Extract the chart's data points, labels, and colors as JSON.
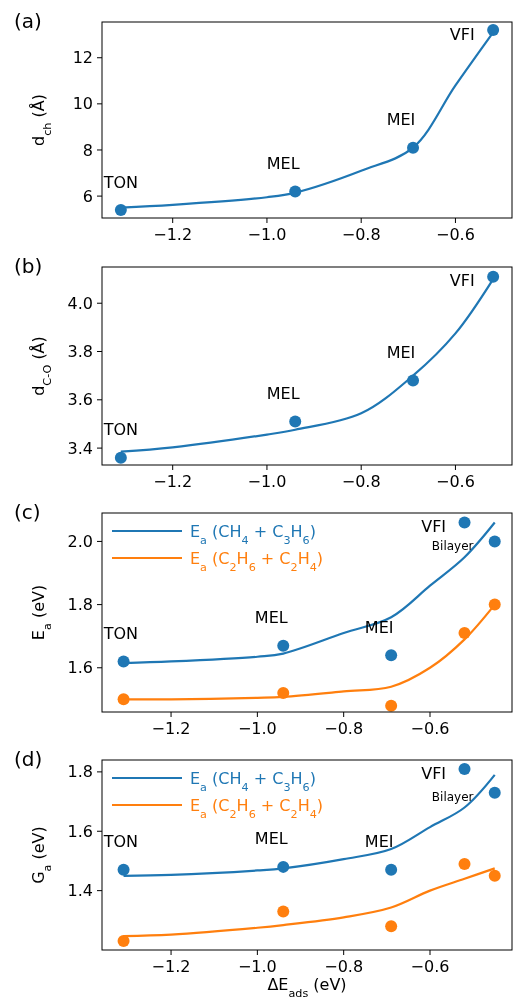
{
  "chart_data": [
    {
      "type": "scatter",
      "title": "(a)",
      "ylabel": "d$_{ch}$ (Å)",
      "xlim": [
        -1.35,
        -0.48
      ],
      "xticks": [
        {
          "value": -1.2,
          "label": "−1.2"
        },
        {
          "value": -1.0,
          "label": "−1.0"
        },
        {
          "value": -0.8,
          "label": "−0.8"
        },
        {
          "value": -0.6,
          "label": "−0.6"
        }
      ],
      "ylim": [
        5.05,
        13.55
      ],
      "yticks": [
        6,
        8,
        10,
        12
      ],
      "series": [
        {
          "type": "scatter",
          "color": "#1f77b4",
          "marker": "circle",
          "x": [
            -1.31,
            -0.94,
            -0.69,
            -0.52
          ],
          "values": [
            5.4,
            6.2,
            8.1,
            13.2
          ]
        },
        {
          "type": "line",
          "color": "#1f77b4",
          "marker": "none",
          "x": [
            -1.31,
            -1.2,
            -1.0,
            -0.94,
            -0.8,
            -0.69,
            -0.6,
            -0.52
          ],
          "values": [
            5.5,
            5.62,
            5.95,
            6.15,
            7.1,
            8.1,
            10.8,
            13.1
          ]
        }
      ],
      "annotations": [
        {
          "text": "TON",
          "x": -1.31,
          "y": 5.4
        },
        {
          "text": "MEL",
          "x": -0.94,
          "y": 6.2
        },
        {
          "text": "MEI",
          "x": -0.69,
          "y": 8.1
        },
        {
          "text": "VFI",
          "x": -0.52,
          "y": 13.2
        }
      ]
    },
    {
      "type": "scatter",
      "title": "(b)",
      "ylabel": "d$_{C-O}$ (Å)",
      "xlim": [
        -1.35,
        -0.48
      ],
      "xticks": [
        {
          "value": -1.2,
          "label": "−1.2"
        },
        {
          "value": -1.0,
          "label": "−1.0"
        },
        {
          "value": -0.8,
          "label": "−0.8"
        },
        {
          "value": -0.6,
          "label": "−0.6"
        }
      ],
      "ylim": [
        3.33,
        4.15
      ],
      "yticks": [
        {
          "value": 3.4,
          "label": "3.4"
        },
        {
          "value": 3.6,
          "label": "3.6"
        },
        {
          "value": 3.8,
          "label": "3.8"
        },
        {
          "value": 4.0,
          "label": "4.0"
        }
      ],
      "series": [
        {
          "type": "scatter",
          "color": "#1f77b4",
          "marker": "circle",
          "x": [
            -1.31,
            -0.94,
            -0.69,
            -0.52
          ],
          "values": [
            3.36,
            3.51,
            3.68,
            4.11
          ]
        },
        {
          "type": "line",
          "color": "#1f77b4",
          "marker": "none",
          "x": [
            -1.31,
            -1.2,
            -1.0,
            -0.94,
            -0.8,
            -0.69,
            -0.6,
            -0.52
          ],
          "values": [
            3.385,
            3.403,
            3.456,
            3.476,
            3.544,
            3.7,
            3.875,
            4.1
          ]
        }
      ],
      "annotations": [
        {
          "text": "TON",
          "x": -1.31,
          "y": 3.36
        },
        {
          "text": "MEL",
          "x": -0.94,
          "y": 3.51
        },
        {
          "text": "MEI",
          "x": -0.69,
          "y": 3.68
        },
        {
          "text": "VFI",
          "x": -0.52,
          "y": 4.11
        }
      ]
    },
    {
      "type": "scatter",
      "title": "(c)",
      "ylabel": "E$_{a}$ (eV)",
      "xlim": [
        -1.36,
        -0.41
      ],
      "xticks": [
        {
          "value": -1.2,
          "label": "−1.2"
        },
        {
          "value": -1.0,
          "label": "−1.0"
        },
        {
          "value": -0.8,
          "label": "−0.8"
        },
        {
          "value": -0.6,
          "label": "−0.6"
        }
      ],
      "ylim": [
        1.46,
        2.09
      ],
      "yticks": [
        1.6,
        1.8,
        {
          "value": 2.0,
          "label": "2.0"
        }
      ],
      "series": [
        {
          "type": "scatter",
          "color": "#1f77b4",
          "marker": "circle",
          "x": [
            -1.31,
            -0.94,
            -0.69,
            -0.52,
            -0.45
          ],
          "values": [
            1.62,
            1.67,
            1.64,
            2.06,
            2.0
          ]
        },
        {
          "type": "scatter",
          "color": "#ff7f0e",
          "marker": "circle",
          "x": [
            -1.31,
            -0.94,
            -0.69,
            -0.52,
            -0.45
          ],
          "values": [
            1.5,
            1.52,
            1.48,
            1.71,
            1.8
          ]
        },
        {
          "type": "line",
          "name": "E$_{a}$ (CH$_{4}$ + C$_{3}$H$_{6}$)",
          "color": "#1f77b4",
          "marker": "none",
          "x": [
            -1.31,
            -1.2,
            -1.0,
            -0.94,
            -0.8,
            -0.69,
            -0.6,
            -0.52,
            -0.45
          ],
          "values": [
            1.615,
            1.62,
            1.635,
            1.645,
            1.71,
            1.76,
            1.86,
            1.95,
            2.06
          ]
        },
        {
          "type": "line",
          "name": "E$_{a}$ (C$_{2}$H$_{6}$ + C$_{2}$H$_{4}$)",
          "color": "#ff7f0e",
          "marker": "none",
          "x": [
            -1.31,
            -1.2,
            -1.0,
            -0.94,
            -0.8,
            -0.69,
            -0.6,
            -0.52,
            -0.45
          ],
          "values": [
            1.5,
            1.5,
            1.505,
            1.508,
            1.525,
            1.54,
            1.6,
            1.69,
            1.8
          ]
        }
      ],
      "annotations": [
        {
          "text": "TON",
          "x": -1.31,
          "y": 1.62
        },
        {
          "text": "MEL",
          "x": -0.94,
          "y": 1.67
        },
        {
          "text": "MEI",
          "x": -0.69,
          "y": 1.64
        },
        {
          "text": "VFI",
          "x": -0.52,
          "y": 2.06
        },
        {
          "text": "Bilayer",
          "x": -0.45,
          "y": 2.0
        }
      ]
    },
    {
      "type": "scatter",
      "title": "(d)",
      "ylabel": "G$_{a}$ (eV)",
      "xlabel": "ΔE$_{ads}$ (eV)",
      "xlim": [
        -1.36,
        -0.41
      ],
      "xticks": [
        {
          "value": -1.2,
          "label": "−1.2"
        },
        {
          "value": -1.0,
          "label": "−1.0"
        },
        {
          "value": -0.8,
          "label": "−0.8"
        },
        {
          "value": -0.6,
          "label": "−0.6"
        }
      ],
      "ylim": [
        1.2,
        1.84
      ],
      "yticks": [
        1.4,
        1.6,
        1.8
      ],
      "series": [
        {
          "type": "scatter",
          "color": "#1f77b4",
          "marker": "circle",
          "x": [
            -1.31,
            -0.94,
            -0.69,
            -0.52,
            -0.45
          ],
          "values": [
            1.47,
            1.48,
            1.47,
            1.81,
            1.73
          ]
        },
        {
          "type": "scatter",
          "color": "#ff7f0e",
          "marker": "circle",
          "x": [
            -1.31,
            -0.94,
            -0.69,
            -0.52,
            -0.45
          ],
          "values": [
            1.23,
            1.33,
            1.28,
            1.49,
            1.45
          ]
        },
        {
          "type": "line",
          "name": "E$_{a}$ (CH$_{4}$ + C$_{3}$H$_{6}$)",
          "color": "#1f77b4",
          "marker": "none",
          "x": [
            -1.31,
            -1.2,
            -1.0,
            -0.94,
            -0.8,
            -0.69,
            -0.6,
            -0.52,
            -0.45
          ],
          "values": [
            1.45,
            1.453,
            1.468,
            1.475,
            1.506,
            1.54,
            1.614,
            1.68,
            1.79
          ]
        },
        {
          "type": "line",
          "name": "E$_{a}$ (C$_{2}$H$_{6}$ + C$_{2}$H$_{4}$)",
          "color": "#ff7f0e",
          "marker": "none",
          "x": [
            -1.31,
            -1.2,
            -1.0,
            -0.94,
            -0.8,
            -0.69,
            -0.6,
            -0.52,
            -0.45
          ],
          "values": [
            1.247,
            1.252,
            1.275,
            1.284,
            1.31,
            1.343,
            1.4,
            1.44,
            1.475
          ]
        }
      ],
      "annotations": [
        {
          "text": "TON",
          "x": -1.31,
          "y": 1.47
        },
        {
          "text": "MEL",
          "x": -0.94,
          "y": 1.48
        },
        {
          "text": "MEI",
          "x": -0.69,
          "y": 1.47
        },
        {
          "text": "VFI",
          "x": -0.52,
          "y": 1.81
        },
        {
          "text": "Bilayer",
          "x": -0.45,
          "y": 1.73
        }
      ]
    }
  ]
}
